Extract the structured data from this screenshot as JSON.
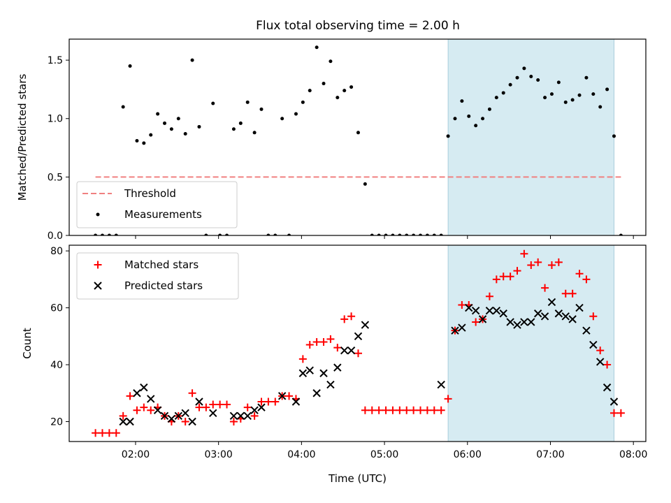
{
  "chart_data": [
    {
      "type": "scatter",
      "title": "Flux total observing time = 2.00 h",
      "xlabel": "",
      "ylabel": "Matched/Predicted stars",
      "xlim": [
        "01:12",
        "08:09"
      ],
      "ylim": [
        0,
        1.68
      ],
      "yticks": [
        "0.0",
        "0.5",
        "1.0",
        "1.5"
      ],
      "highlight_span": [
        "05:46",
        "07:46"
      ],
      "threshold": {
        "name": "Threshold",
        "value": 0.5,
        "x_range": [
          "01:31",
          "07:51"
        ],
        "color": "#f08080"
      },
      "legend": {
        "position": "lower-left",
        "entries": [
          "Threshold",
          "Measurements"
        ]
      },
      "series": [
        {
          "name": "Measurements",
          "color": "#000000",
          "points": [
            [
              "01:31",
              0
            ],
            [
              "01:36",
              0
            ],
            [
              "01:41",
              0
            ],
            [
              "01:46",
              0
            ],
            [
              "01:51",
              1.1
            ],
            [
              "01:56",
              1.45
            ],
            [
              "02:01",
              0.81
            ],
            [
              "02:06",
              0.79
            ],
            [
              "02:11",
              0.86
            ],
            [
              "02:16",
              1.04
            ],
            [
              "02:21",
              0.96
            ],
            [
              "02:26",
              0.91
            ],
            [
              "02:31",
              1.0
            ],
            [
              "02:36",
              0.87
            ],
            [
              "02:41",
              1.5
            ],
            [
              "02:46",
              0.93
            ],
            [
              "02:51",
              0
            ],
            [
              "02:56",
              1.13
            ],
            [
              "03:01",
              0
            ],
            [
              "03:06",
              0
            ],
            [
              "03:11",
              0.91
            ],
            [
              "03:16",
              0.96
            ],
            [
              "03:21",
              1.14
            ],
            [
              "03:26",
              0.88
            ],
            [
              "03:31",
              1.08
            ],
            [
              "03:36",
              0
            ],
            [
              "03:41",
              0
            ],
            [
              "03:46",
              1.0
            ],
            [
              "03:51",
              0
            ],
            [
              "03:56",
              1.04
            ],
            [
              "04:01",
              1.14
            ],
            [
              "04:06",
              1.24
            ],
            [
              "04:11",
              1.61
            ],
            [
              "04:16",
              1.3
            ],
            [
              "04:21",
              1.49
            ],
            [
              "04:26",
              1.18
            ],
            [
              "04:31",
              1.24
            ],
            [
              "04:36",
              1.27
            ],
            [
              "04:41",
              0.88
            ],
            [
              "04:46",
              0.44
            ],
            [
              "04:51",
              0
            ],
            [
              "04:56",
              0
            ],
            [
              "05:01",
              0
            ],
            [
              "05:06",
              0
            ],
            [
              "05:11",
              0
            ],
            [
              "05:16",
              0
            ],
            [
              "05:21",
              0
            ],
            [
              "05:26",
              0
            ],
            [
              "05:31",
              0
            ],
            [
              "05:36",
              0
            ],
            [
              "05:41",
              0
            ],
            [
              "05:46",
              0.85
            ],
            [
              "05:51",
              1.0
            ],
            [
              "05:56",
              1.15
            ],
            [
              "06:01",
              1.02
            ],
            [
              "06:06",
              0.94
            ],
            [
              "06:11",
              1.0
            ],
            [
              "06:16",
              1.08
            ],
            [
              "06:21",
              1.18
            ],
            [
              "06:26",
              1.22
            ],
            [
              "06:31",
              1.29
            ],
            [
              "06:36",
              1.35
            ],
            [
              "06:41",
              1.43
            ],
            [
              "06:46",
              1.36
            ],
            [
              "06:51",
              1.33
            ],
            [
              "06:56",
              1.18
            ],
            [
              "07:01",
              1.21
            ],
            [
              "07:06",
              1.31
            ],
            [
              "07:11",
              1.14
            ],
            [
              "07:16",
              1.16
            ],
            [
              "07:21",
              1.2
            ],
            [
              "07:26",
              1.35
            ],
            [
              "07:31",
              1.21
            ],
            [
              "07:36",
              1.1
            ],
            [
              "07:41",
              1.25
            ],
            [
              "07:46",
              0.85
            ],
            [
              "07:51",
              0
            ]
          ]
        }
      ]
    },
    {
      "type": "scatter",
      "title": "",
      "xlabel": "Time (UTC)",
      "ylabel": "Count",
      "xlim": [
        "01:12",
        "08:09"
      ],
      "ylim": [
        13,
        82
      ],
      "xticks": [
        "02:00",
        "03:00",
        "04:00",
        "05:00",
        "06:00",
        "07:00",
        "08:00"
      ],
      "yticks": [
        "20",
        "40",
        "60",
        "80"
      ],
      "highlight_span": [
        "05:46",
        "07:46"
      ],
      "legend": {
        "position": "upper-left",
        "entries": [
          "Matched stars",
          "Predicted stars"
        ]
      },
      "series": [
        {
          "name": "Matched stars",
          "marker": "plus",
          "color": "#ff0000",
          "points": [
            [
              "01:31",
              16
            ],
            [
              "01:36",
              16
            ],
            [
              "01:41",
              16
            ],
            [
              "01:46",
              16
            ],
            [
              "01:51",
              22
            ],
            [
              "01:56",
              29
            ],
            [
              "02:01",
              24
            ],
            [
              "02:06",
              25
            ],
            [
              "02:11",
              24
            ],
            [
              "02:16",
              25
            ],
            [
              "02:21",
              22
            ],
            [
              "02:26",
              20
            ],
            [
              "02:31",
              22
            ],
            [
              "02:36",
              20
            ],
            [
              "02:41",
              30
            ],
            [
              "02:46",
              25
            ],
            [
              "02:51",
              25
            ],
            [
              "02:56",
              26
            ],
            [
              "03:01",
              26
            ],
            [
              "03:06",
              26
            ],
            [
              "03:11",
              20
            ],
            [
              "03:16",
              21
            ],
            [
              "03:21",
              25
            ],
            [
              "03:26",
              22
            ],
            [
              "03:31",
              27
            ],
            [
              "03:36",
              27
            ],
            [
              "03:41",
              27
            ],
            [
              "03:46",
              29
            ],
            [
              "03:51",
              29
            ],
            [
              "03:56",
              28
            ],
            [
              "04:01",
              42
            ],
            [
              "04:06",
              47
            ],
            [
              "04:11",
              48
            ],
            [
              "04:16",
              48
            ],
            [
              "04:21",
              49
            ],
            [
              "04:26",
              46
            ],
            [
              "04:31",
              56
            ],
            [
              "04:36",
              57
            ],
            [
              "04:41",
              44
            ],
            [
              "04:46",
              24
            ],
            [
              "04:51",
              24
            ],
            [
              "04:56",
              24
            ],
            [
              "05:01",
              24
            ],
            [
              "05:06",
              24
            ],
            [
              "05:11",
              24
            ],
            [
              "05:16",
              24
            ],
            [
              "05:21",
              24
            ],
            [
              "05:26",
              24
            ],
            [
              "05:31",
              24
            ],
            [
              "05:36",
              24
            ],
            [
              "05:41",
              24
            ],
            [
              "05:46",
              28
            ],
            [
              "05:51",
              52
            ],
            [
              "05:56",
              61
            ],
            [
              "06:01",
              61
            ],
            [
              "06:06",
              55
            ],
            [
              "06:11",
              56
            ],
            [
              "06:16",
              64
            ],
            [
              "06:21",
              70
            ],
            [
              "06:26",
              71
            ],
            [
              "06:31",
              71
            ],
            [
              "06:36",
              73
            ],
            [
              "06:41",
              79
            ],
            [
              "06:46",
              75
            ],
            [
              "06:51",
              76
            ],
            [
              "06:56",
              67
            ],
            [
              "07:01",
              75
            ],
            [
              "07:06",
              76
            ],
            [
              "07:11",
              65
            ],
            [
              "07:16",
              65
            ],
            [
              "07:21",
              72
            ],
            [
              "07:26",
              70
            ],
            [
              "07:31",
              57
            ],
            [
              "07:36",
              45
            ],
            [
              "07:41",
              40
            ],
            [
              "07:46",
              23
            ],
            [
              "07:51",
              23
            ]
          ]
        },
        {
          "name": "Predicted stars",
          "marker": "x",
          "color": "#000000",
          "points": [
            [
              "01:51",
              20
            ],
            [
              "01:56",
              20
            ],
            [
              "02:01",
              30
            ],
            [
              "02:06",
              32
            ],
            [
              "02:11",
              28
            ],
            [
              "02:16",
              24
            ],
            [
              "02:21",
              22
            ],
            [
              "02:26",
              21
            ],
            [
              "02:31",
              22
            ],
            [
              "02:36",
              23
            ],
            [
              "02:41",
              20
            ],
            [
              "02:46",
              27
            ],
            [
              "02:56",
              23
            ],
            [
              "03:11",
              22
            ],
            [
              "03:16",
              22
            ],
            [
              "03:21",
              22
            ],
            [
              "03:26",
              24
            ],
            [
              "03:31",
              25
            ],
            [
              "03:46",
              29
            ],
            [
              "03:56",
              27
            ],
            [
              "04:01",
              37
            ],
            [
              "04:06",
              38
            ],
            [
              "04:11",
              30
            ],
            [
              "04:16",
              37
            ],
            [
              "04:21",
              33
            ],
            [
              "04:26",
              39
            ],
            [
              "04:31",
              45
            ],
            [
              "04:36",
              45
            ],
            [
              "04:41",
              50
            ],
            [
              "04:46",
              54
            ],
            [
              "05:41",
              33
            ],
            [
              "05:51",
              52
            ],
            [
              "05:56",
              53
            ],
            [
              "06:01",
              60
            ],
            [
              "06:06",
              59
            ],
            [
              "06:11",
              56
            ],
            [
              "06:16",
              59
            ],
            [
              "06:21",
              59
            ],
            [
              "06:26",
              58
            ],
            [
              "06:31",
              55
            ],
            [
              "06:36",
              54
            ],
            [
              "06:41",
              55
            ],
            [
              "06:46",
              55
            ],
            [
              "06:51",
              58
            ],
            [
              "06:56",
              57
            ],
            [
              "07:01",
              62
            ],
            [
              "07:06",
              58
            ],
            [
              "07:11",
              57
            ],
            [
              "07:16",
              56
            ],
            [
              "07:21",
              60
            ],
            [
              "07:26",
              52
            ],
            [
              "07:31",
              47
            ],
            [
              "07:36",
              41
            ],
            [
              "07:41",
              32
            ],
            [
              "07:46",
              27
            ]
          ]
        }
      ]
    }
  ]
}
